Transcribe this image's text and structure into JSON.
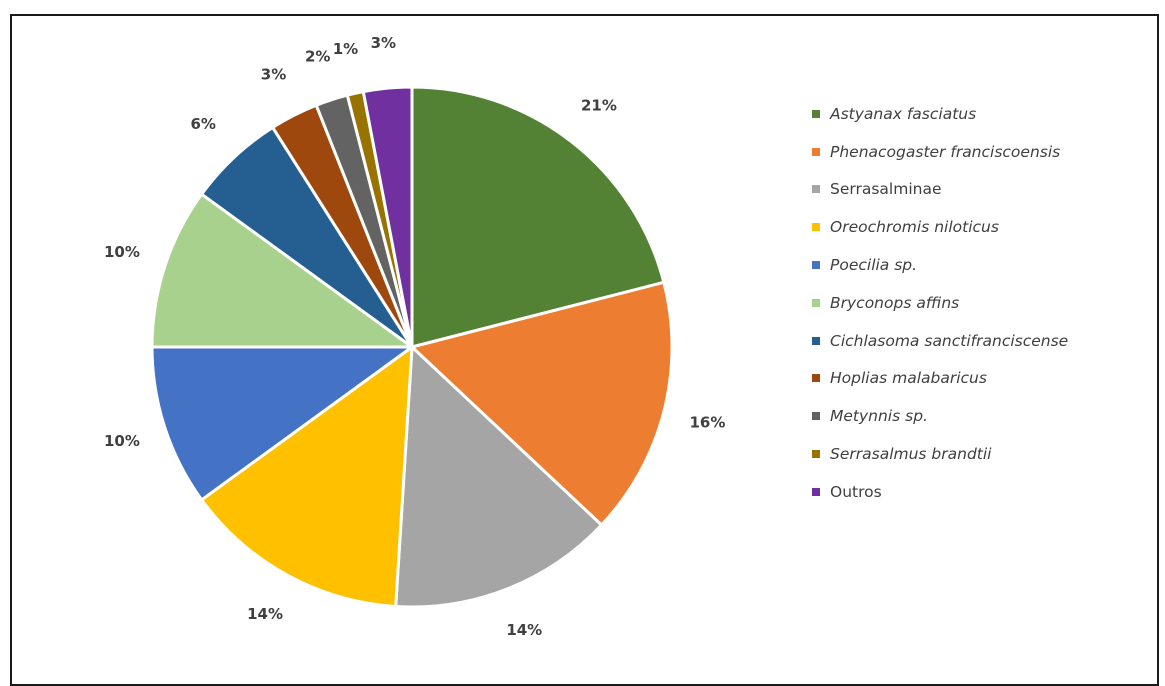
{
  "chart_data": {
    "type": "pie",
    "title": "",
    "slices": [
      {
        "label": "Astyanax fasciatus",
        "value": 21,
        "value_label": "21%",
        "color": "#548235",
        "italic": true
      },
      {
        "label": "Phenacogaster franciscoensis",
        "value": 16,
        "value_label": "16%",
        "color": "#ED7D31",
        "italic": true
      },
      {
        "label": "Serrasalminae",
        "value": 14,
        "value_label": "14%",
        "color": "#A5A5A5",
        "italic": false
      },
      {
        "label": "Oreochromis niloticus",
        "value": 14,
        "value_label": "14%",
        "color": "#FFC000",
        "italic": true
      },
      {
        "label": "Poecilia sp.",
        "value": 10,
        "value_label": "10%",
        "color": "#4472C4",
        "italic": true
      },
      {
        "label": "Bryconops affins",
        "value": 10,
        "value_label": "10%",
        "color": "#A9D18E",
        "italic": true
      },
      {
        "label": "Cichlasoma sanctifranciscense",
        "value": 6,
        "value_label": "6%",
        "color": "#255E91",
        "italic": true
      },
      {
        "label": "Hoplias malabaricus",
        "value": 3,
        "value_label": "3%",
        "color": "#9E480E",
        "italic": true
      },
      {
        "label": "Metynnis sp.",
        "value": 2,
        "value_label": "2%",
        "color": "#636363",
        "italic": true
      },
      {
        "label": "Serrasalmus brandtii",
        "value": 1,
        "value_label": "1%",
        "color": "#997300",
        "italic": true
      },
      {
        "label": "Outros",
        "value": 3,
        "value_label": "3%",
        "color": "#7030A0",
        "italic": false
      }
    ],
    "legend_position": "right",
    "start_angle": "12 o'clock",
    "direction": "clockwise"
  }
}
